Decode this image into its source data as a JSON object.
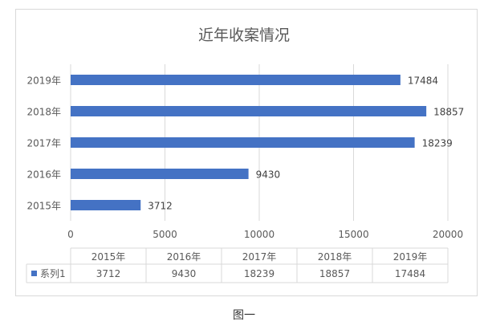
{
  "chart_data": {
    "type": "bar",
    "orientation": "horizontal",
    "title": "近年收案情况",
    "categories": [
      "2015年",
      "2016年",
      "2017年",
      "2018年",
      "2019年"
    ],
    "series": [
      {
        "name": "系列1",
        "values": [
          3712,
          9430,
          18239,
          18857,
          17484
        ],
        "color": "#4472c4"
      }
    ],
    "xlim": [
      0,
      20000
    ],
    "xticks": [
      0,
      5000,
      10000,
      15000,
      20000
    ],
    "grid": true,
    "data_table": true,
    "data_labels": true
  },
  "caption": "图一"
}
